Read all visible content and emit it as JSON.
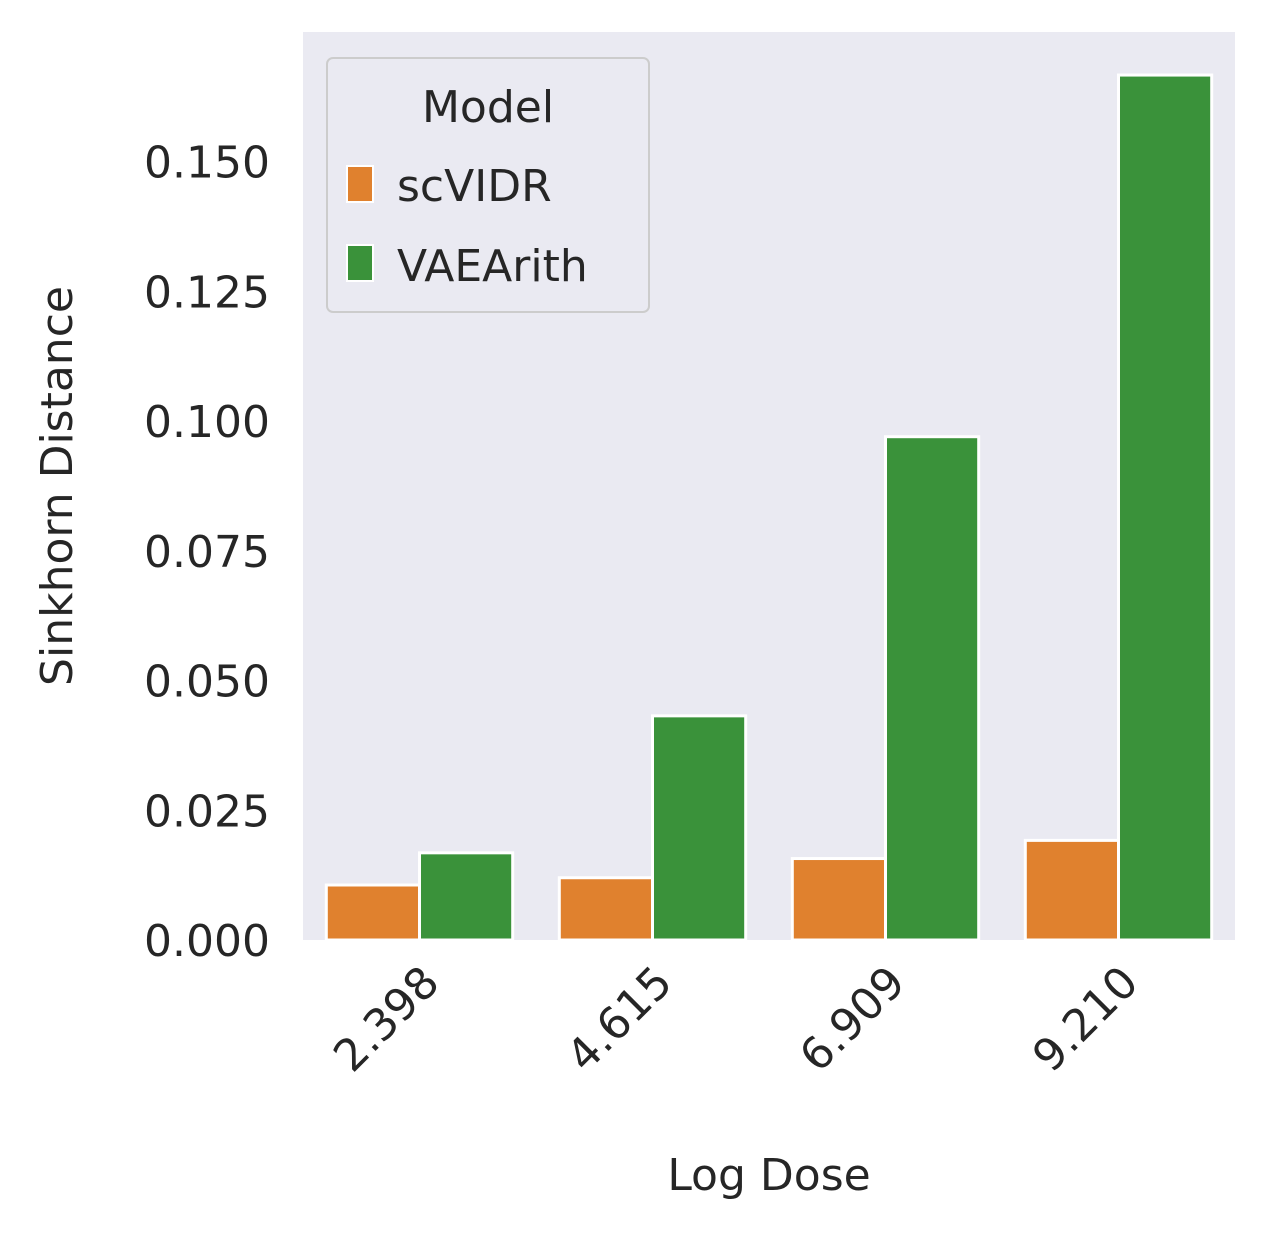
{
  "chart_data": {
    "type": "bar",
    "title": "",
    "xlabel": "Log Dose",
    "ylabel": "Sinkhorn Distance",
    "categories": [
      "2.398",
      "4.615",
      "6.909",
      "9.210"
    ],
    "series": [
      {
        "name": "scVIDR",
        "color": "#e0812e",
        "values": [
          0.0106,
          0.012,
          0.0157,
          0.0192
        ]
      },
      {
        "name": "VAEArith",
        "color": "#3a923a",
        "values": [
          0.0168,
          0.0432,
          0.097,
          0.1667
        ]
      }
    ],
    "ylim": [
      0,
      0.175
    ],
    "yticks": [
      "0.000",
      "0.025",
      "0.050",
      "0.075",
      "0.100",
      "0.125",
      "0.150"
    ],
    "ytick_values": [
      0,
      0.025,
      0.05,
      0.075,
      0.1,
      0.125,
      0.15
    ],
    "grid": false,
    "background": "#eaeaf2",
    "legend": {
      "title": "Model",
      "placement": "top-left"
    }
  }
}
